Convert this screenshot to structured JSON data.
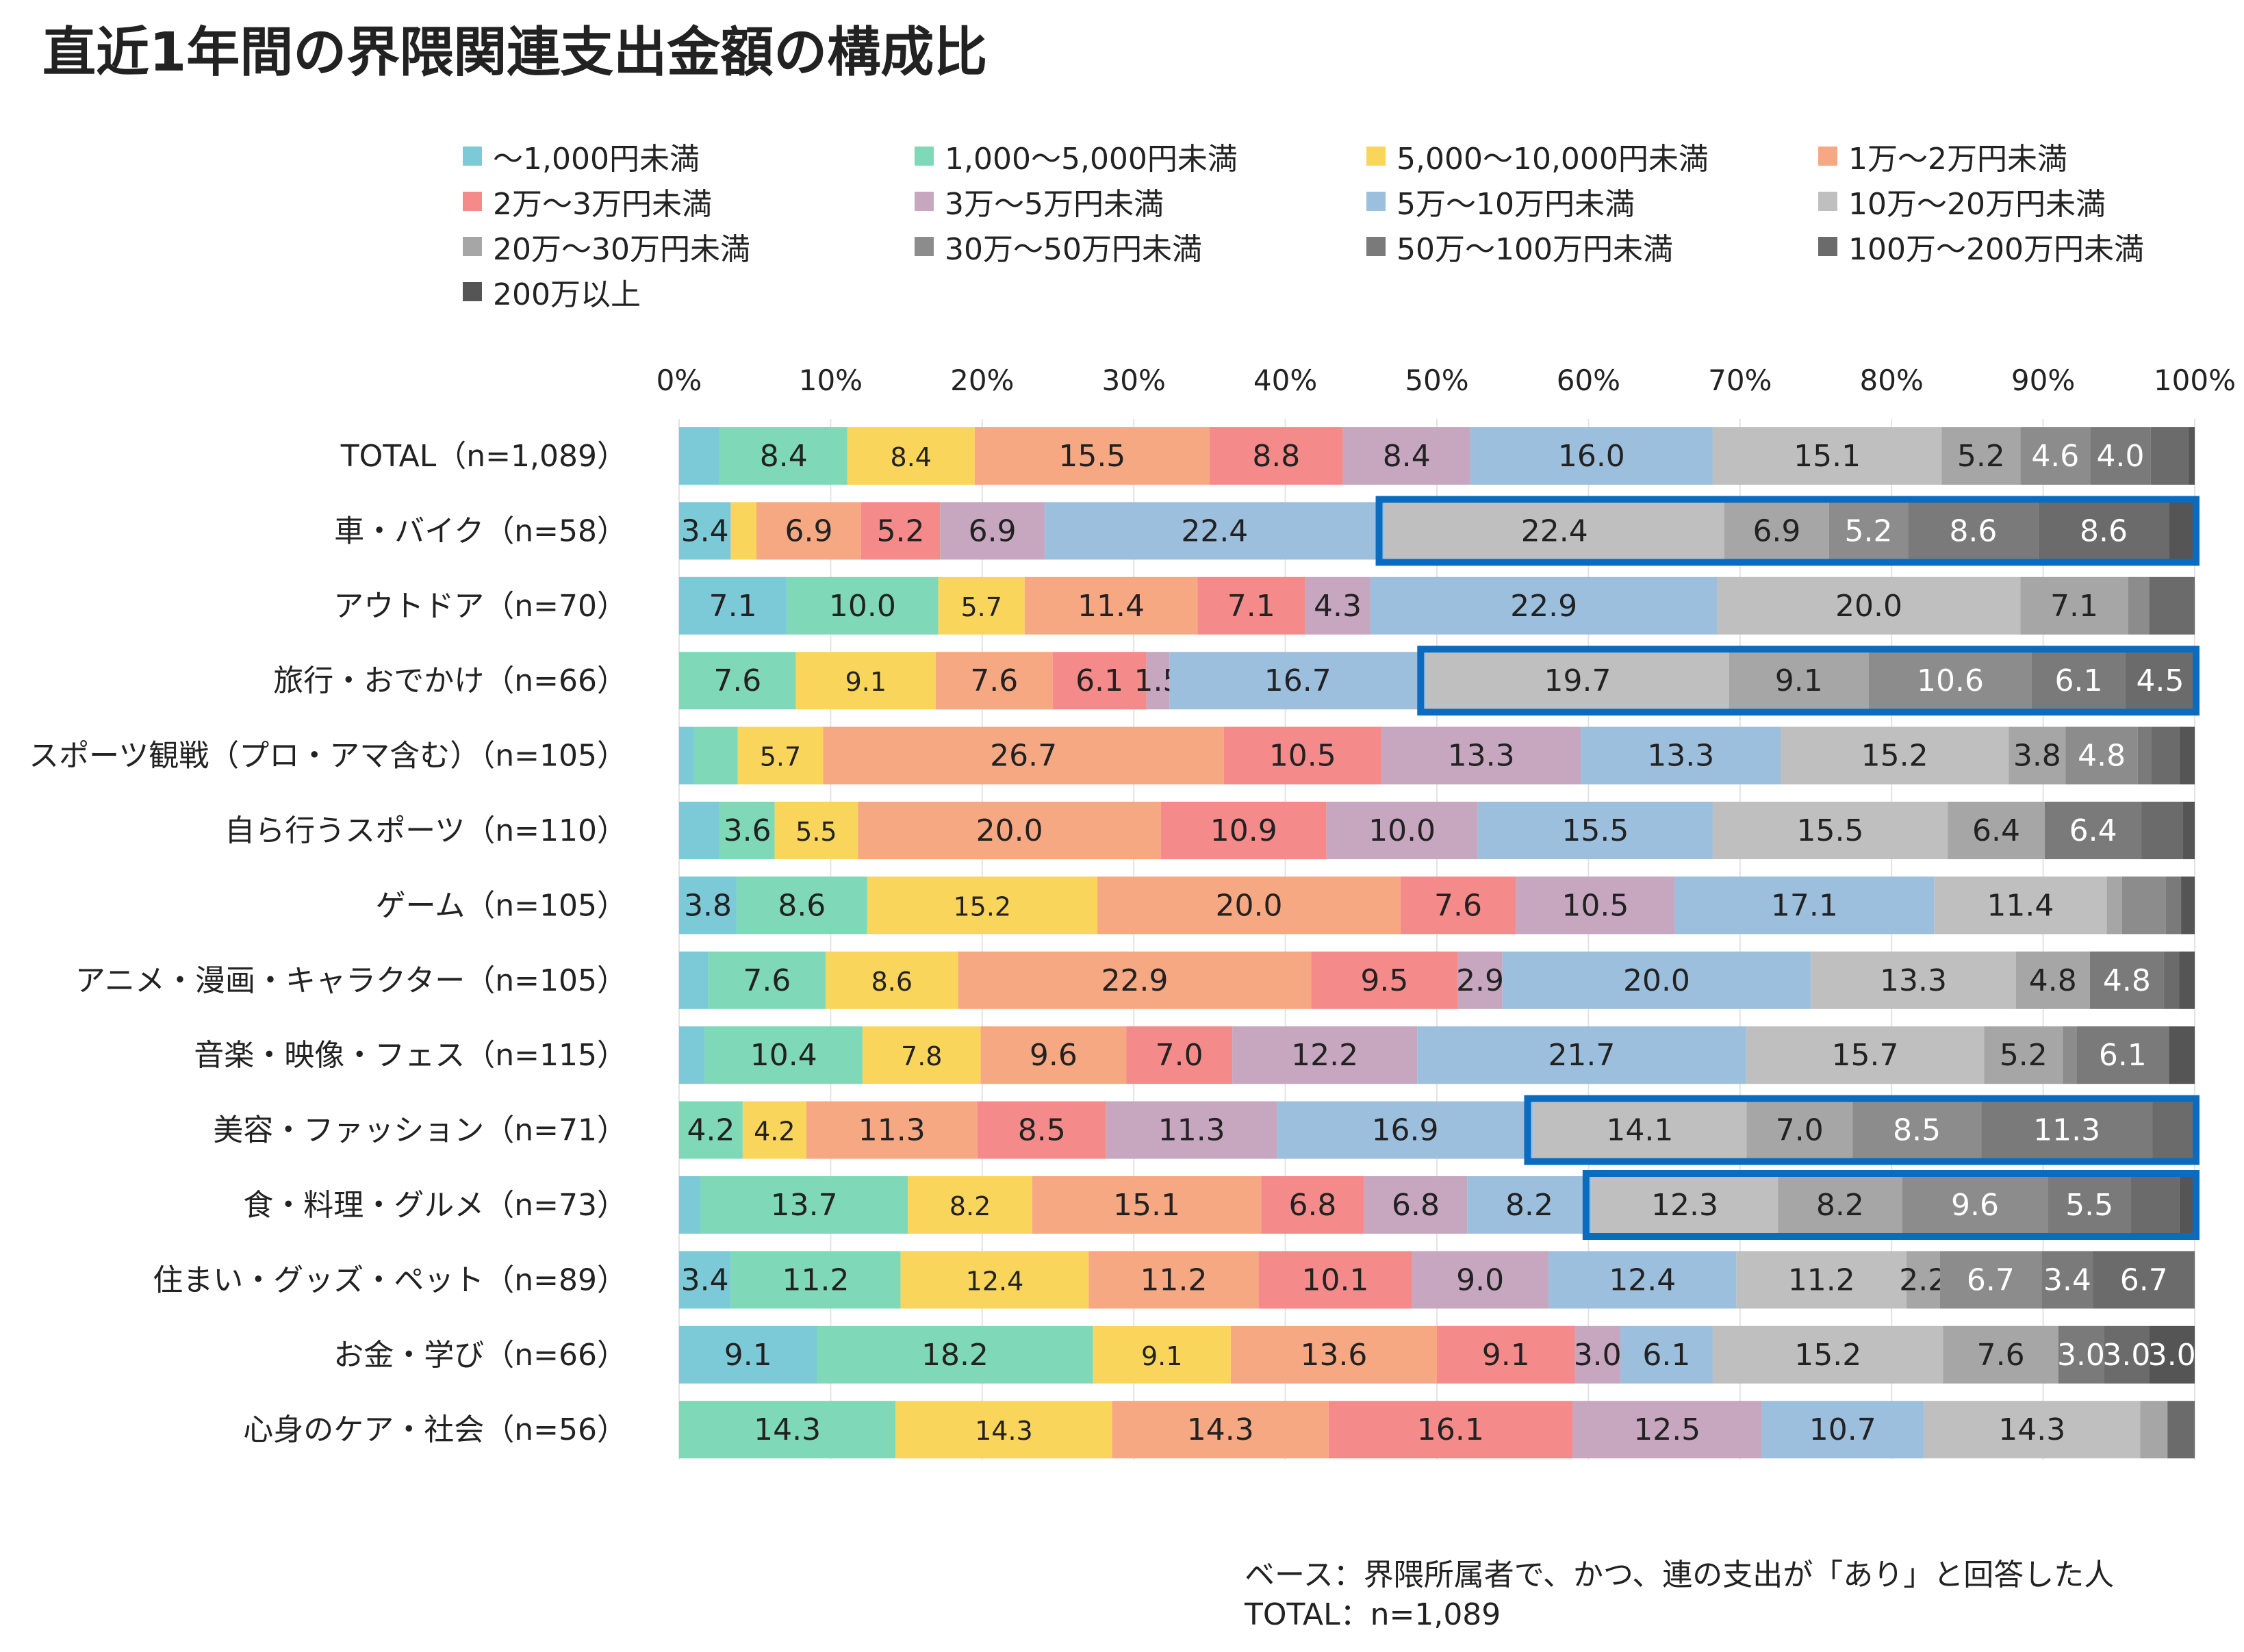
{
  "chart_data": {
    "type": "bar",
    "orientation": "horizontal",
    "stacked": true,
    "title": "直近1年間の界隈関連支出金額の構成比",
    "xlim": [
      0,
      100
    ],
    "x_ticks": [
      "0%",
      "10%",
      "20%",
      "30%",
      "40%",
      "50%",
      "60%",
      "70%",
      "80%",
      "90%",
      "100%"
    ],
    "categories": [
      "TOTAL（n=1,089）",
      "車・バイク（n=58）",
      "アウトドア（n=70）",
      "旅行・おでかけ（n=66）",
      "スポーツ観戦（プロ・アマ含む）（n=105）",
      "自ら行うスポーツ（n=110）",
      "ゲーム（n=105）",
      "アニメ・漫画・キャラクター（n=105）",
      "音楽・映像・フェス（n=115）",
      "美容・ファッション（n=71）",
      "食・料理・グルメ（n=73）",
      "住まい・グッズ・ペット（n=89）",
      "お金・学び（n=66）",
      "心身のケア・社会（n=56）"
    ],
    "series": [
      {
        "name": "～1,000円未満",
        "color": "#7ccad8",
        "values": [
          2.7,
          3.4,
          7.1,
          0.0,
          1.0,
          2.7,
          3.8,
          1.9,
          1.7,
          0.0,
          1.4,
          3.4,
          9.1,
          0.0
        ]
      },
      {
        "name": "1,000～5,000円未満",
        "color": "#7fd9b9",
        "values": [
          8.4,
          0.0,
          10.0,
          7.6,
          2.9,
          3.6,
          8.6,
          7.6,
          10.4,
          4.2,
          13.7,
          11.2,
          18.2,
          14.3
        ]
      },
      {
        "name": "5,000～10,000円未満",
        "color": "#fad55c",
        "values": [
          8.4,
          1.7,
          5.7,
          9.1,
          5.7,
          5.5,
          15.2,
          8.6,
          7.8,
          4.2,
          8.2,
          12.4,
          9.1,
          14.3
        ]
      },
      {
        "name": "1万～2万円未満",
        "color": "#f6a882",
        "values": [
          15.5,
          6.9,
          11.4,
          7.6,
          26.7,
          20.0,
          20.0,
          22.9,
          9.6,
          11.3,
          15.1,
          11.2,
          13.6,
          14.3
        ]
      },
      {
        "name": "2万～3万円未満",
        "color": "#f58a8a",
        "values": [
          8.8,
          5.2,
          7.1,
          6.1,
          10.5,
          10.9,
          7.6,
          9.5,
          7.0,
          8.5,
          6.8,
          10.1,
          9.1,
          16.1
        ]
      },
      {
        "name": "3万～5万円未満",
        "color": "#c6a7bf",
        "values": [
          8.4,
          6.9,
          4.3,
          1.5,
          13.3,
          10.0,
          10.5,
          2.9,
          12.2,
          11.3,
          6.8,
          9.0,
          3.0,
          12.5
        ]
      },
      {
        "name": "5万～10万円未満",
        "color": "#9dbfde",
        "values": [
          16.0,
          22.4,
          22.9,
          16.7,
          13.3,
          15.5,
          17.1,
          20.0,
          21.7,
          16.9,
          8.2,
          12.4,
          6.1,
          10.7
        ]
      },
      {
        "name": "10万～20万円未満",
        "color": "#bfbfbf",
        "values": [
          15.1,
          22.4,
          20.0,
          19.7,
          15.2,
          15.5,
          11.4,
          13.3,
          15.7,
          14.1,
          12.3,
          11.2,
          15.2,
          14.3
        ]
      },
      {
        "name": "20万～30万円未満",
        "color": "#a6a6a6",
        "values": [
          5.2,
          6.9,
          7.1,
          9.1,
          3.8,
          6.4,
          1.0,
          4.8,
          5.2,
          7.0,
          8.2,
          2.2,
          7.6,
          1.8
        ]
      },
      {
        "name": "30万～50万円未満",
        "color": "#8c8c8c",
        "values": [
          4.6,
          5.2,
          1.4,
          10.6,
          4.8,
          0.0,
          2.9,
          0.0,
          0.9,
          8.5,
          9.6,
          6.7,
          0.0,
          0.0
        ]
      },
      {
        "name": "50万～100万円未満",
        "color": "#7a7a7a",
        "values": [
          4.0,
          8.6,
          0.0,
          6.1,
          0.9,
          6.4,
          1.0,
          4.8,
          6.1,
          11.3,
          5.5,
          3.4,
          3.0,
          0.0
        ]
      },
      {
        "name": "100万～200万円未満",
        "color": "#6b6b6b",
        "values": [
          2.5,
          8.6,
          3.0,
          4.5,
          1.9,
          2.7,
          0.0,
          1.0,
          0.0,
          2.8,
          3.2,
          6.7,
          3.0,
          1.8
        ]
      },
      {
        "name": "200万以上",
        "color": "#555555",
        "values": [
          0.4,
          1.7,
          0.0,
          0.0,
          1.0,
          0.8,
          0.9,
          1.0,
          1.7,
          0.0,
          1.0,
          0.0,
          3.0,
          0.0
        ]
      }
    ],
    "data_labels": [
      [
        "",
        "8.4",
        "8.4",
        "15.5",
        "8.8",
        "8.4",
        "16.0",
        "15.1",
        "5.2",
        "4.6",
        "4.0",
        "",
        ""
      ],
      [
        "3.4",
        "",
        "",
        "6.9",
        "5.2",
        "6.9",
        "22.4",
        "22.4",
        "6.9",
        "5.2",
        "8.6",
        "8.6",
        ""
      ],
      [
        "7.1",
        "10.0",
        "5.7",
        "11.4",
        "7.1",
        "4.3",
        "22.9",
        "20.0",
        "7.1",
        "",
        "",
        "",
        ""
      ],
      [
        "",
        "7.6",
        "9.1",
        "7.6",
        "6.1",
        "1.5",
        "16.7",
        "19.7",
        "9.1",
        "10.6",
        "6.1",
        "4.5",
        ""
      ],
      [
        "",
        "",
        "5.7",
        "26.7",
        "10.5",
        "13.3",
        "13.3",
        "15.2",
        "3.8",
        "4.8",
        "",
        "",
        ""
      ],
      [
        "",
        "3.6",
        "5.5",
        "20.0",
        "10.9",
        "10.0",
        "15.5",
        "15.5",
        "6.4",
        "",
        "6.4",
        "",
        ""
      ],
      [
        "3.8",
        "8.6",
        "15.2",
        "20.0",
        "7.6",
        "10.5",
        "17.1",
        "11.4",
        "",
        "",
        "",
        "",
        ""
      ],
      [
        "",
        "7.6",
        "8.6",
        "22.9",
        "9.5",
        "2.9",
        "20.0",
        "13.3",
        "4.8",
        "",
        "4.8",
        "",
        ""
      ],
      [
        "",
        "10.4",
        "7.8",
        "9.6",
        "7.0",
        "12.2",
        "21.7",
        "15.7",
        "5.2",
        "",
        "6.1",
        "",
        ""
      ],
      [
        "",
        "4.2",
        "4.2",
        "11.3",
        "8.5",
        "11.3",
        "16.9",
        "14.1",
        "7.0",
        "8.5",
        "11.3",
        "",
        ""
      ],
      [
        "",
        "13.7",
        "8.2",
        "15.1",
        "6.8",
        "6.8",
        "8.2",
        "12.3",
        "8.2",
        "9.6",
        "5.5",
        "",
        ""
      ],
      [
        "3.4",
        "11.2",
        "12.4",
        "11.2",
        "10.1",
        "9.0",
        "12.4",
        "11.2",
        "2.2",
        "6.7",
        "3.4",
        "6.7",
        ""
      ],
      [
        "9.1",
        "18.2",
        "9.1",
        "13.6",
        "9.1",
        "3.0",
        "6.1",
        "15.2",
        "7.6",
        "",
        "3.0",
        "3.0",
        "3.0"
      ],
      [
        "",
        "14.3",
        "14.3",
        "14.3",
        "16.1",
        "12.5",
        "10.7",
        "14.3",
        "",
        "",
        "",
        "",
        ""
      ]
    ],
    "highlights": [
      {
        "row": "車・バイク（n=58）",
        "from_series": "10万～20万円未満",
        "color": "#0b6cbf"
      },
      {
        "row": "旅行・おでかけ（n=66）",
        "from_series": "10万～20万円未満",
        "color": "#0b6cbf"
      },
      {
        "row": "美容・ファッション（n=71）",
        "from_series": "10万～20万円未満",
        "color": "#0b6cbf"
      },
      {
        "row": "食・料理・グルメ（n=73）",
        "from_series": "10万～20万円未満",
        "color": "#0b6cbf"
      }
    ],
    "legend_position": "top"
  },
  "notes": {
    "base": "ベース：界隈所属者で、かつ、連の支出が「あり」と回答した人",
    "total": "TOTAL：n=1,089"
  }
}
